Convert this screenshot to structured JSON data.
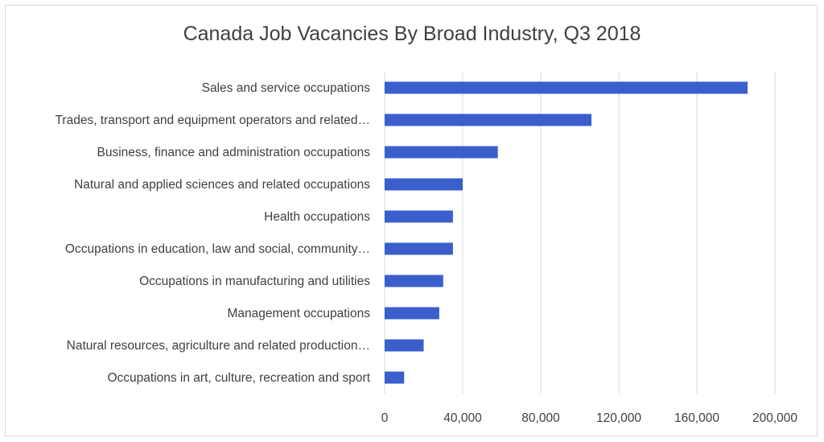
{
  "chart_data": {
    "type": "bar",
    "orientation": "horizontal",
    "title": "Canada Job Vacancies By Broad Industry, Q3 2018",
    "categories": [
      "Sales and service occupations",
      "Trades, transport and equipment operators and related…",
      "Business, finance and administration occupations",
      "Natural and applied sciences and related occupations",
      "Health occupations",
      "Occupations in education, law and social, community…",
      "Occupations in manufacturing and utilities",
      "Management occupations",
      "Natural resources, agriculture and related production…",
      "Occupations in art, culture, recreation and sport"
    ],
    "values": [
      186000,
      106000,
      58000,
      40000,
      35000,
      35000,
      30000,
      28000,
      20000,
      10000
    ],
    "xlim": [
      0,
      200000
    ],
    "x_ticks": [
      0,
      40000,
      80000,
      120000,
      160000,
      200000
    ],
    "x_tick_labels": [
      "0",
      "40,000",
      "80,000",
      "120,000",
      "160,000",
      "200,000"
    ],
    "bar_color": "#3a5fcd",
    "gridlines": true,
    "legend": "none"
  }
}
